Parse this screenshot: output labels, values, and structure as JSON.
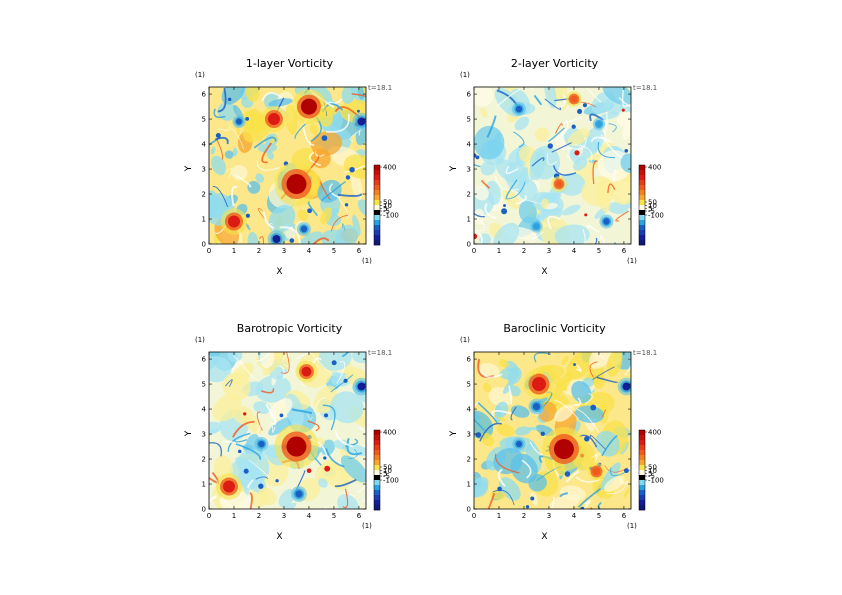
{
  "chart_data": [
    {
      "type": "heatmap",
      "title": "1-layer Vorticity",
      "xlabel": "X",
      "ylabel": "Y",
      "x_unit": "(1)",
      "y_unit": "(1)",
      "time_label": "t=18.1",
      "xlim": [
        0,
        6.283
      ],
      "ylim": [
        0,
        6.283
      ],
      "xticks": [
        0,
        1,
        2,
        3,
        4,
        5,
        6
      ],
      "yticks": [
        0,
        1,
        2,
        3,
        4,
        5,
        6
      ],
      "colorbar": {
        "ticks": [
          400,
          50,
          10,
          5,
          -5,
          -100
        ]
      },
      "grid": false,
      "style": "strong",
      "features": [
        {
          "x": 3.5,
          "y": 2.4,
          "value": 400
        },
        {
          "x": 4.0,
          "y": 5.5,
          "value": 300
        },
        {
          "x": 6.1,
          "y": 4.9,
          "value": -100
        },
        {
          "x": 2.6,
          "y": 5.0,
          "value": 200
        },
        {
          "x": 1.0,
          "y": 0.9,
          "value": 200
        },
        {
          "x": 2.7,
          "y": 0.2,
          "value": -100
        },
        {
          "x": 3.8,
          "y": 0.6,
          "value": -60
        },
        {
          "x": 1.2,
          "y": 4.9,
          "value": -50
        }
      ]
    },
    {
      "type": "heatmap",
      "title": "2-layer Vorticity",
      "xlabel": "X",
      "ylabel": "Y",
      "x_unit": "(1)",
      "y_unit": "(1)",
      "time_label": "t=18.1",
      "xlim": [
        0,
        6.283
      ],
      "ylim": [
        0,
        6.283
      ],
      "xticks": [
        0,
        1,
        2,
        3,
        4,
        5,
        6
      ],
      "yticks": [
        0,
        1,
        2,
        3,
        4,
        5,
        6
      ],
      "colorbar": {
        "ticks": [
          400,
          50,
          10,
          5,
          -5,
          -100
        ]
      },
      "grid": false,
      "style": "weak",
      "features": [
        {
          "x": 3.4,
          "y": 2.4,
          "value": 80
        },
        {
          "x": 1.8,
          "y": 5.4,
          "value": -60
        },
        {
          "x": 5.0,
          "y": 4.8,
          "value": -40
        },
        {
          "x": 2.5,
          "y": 0.7,
          "value": -40
        },
        {
          "x": 5.3,
          "y": 0.9,
          "value": -60
        },
        {
          "x": 4.0,
          "y": 5.8,
          "value": 80
        }
      ]
    },
    {
      "type": "heatmap",
      "title": "Barotropic Vorticity",
      "xlabel": "X",
      "ylabel": "Y",
      "x_unit": "(1)",
      "y_unit": "(1)",
      "time_label": "t=18.1",
      "xlim": [
        0,
        6.283
      ],
      "ylim": [
        0,
        6.283
      ],
      "xticks": [
        0,
        1,
        2,
        3,
        4,
        5,
        6
      ],
      "yticks": [
        0,
        1,
        2,
        3,
        4,
        5,
        6
      ],
      "colorbar": {
        "ticks": [
          400,
          50,
          10,
          5,
          -5,
          -100
        ]
      },
      "grid": false,
      "style": "weak",
      "features": [
        {
          "x": 3.5,
          "y": 2.5,
          "value": 400
        },
        {
          "x": 6.1,
          "y": 4.9,
          "value": -100
        },
        {
          "x": 0.8,
          "y": 0.9,
          "value": 200
        },
        {
          "x": 3.9,
          "y": 5.5,
          "value": 150
        },
        {
          "x": 2.1,
          "y": 2.6,
          "value": -60
        },
        {
          "x": 3.6,
          "y": 0.6,
          "value": -80
        }
      ]
    },
    {
      "type": "heatmap",
      "title": "Baroclinic Vorticity",
      "xlabel": "X",
      "ylabel": "Y",
      "x_unit": "(1)",
      "y_unit": "(1)",
      "time_label": "t=18.1",
      "xlim": [
        0,
        6.283
      ],
      "ylim": [
        0,
        6.283
      ],
      "xticks": [
        0,
        1,
        2,
        3,
        4,
        5,
        6
      ],
      "yticks": [
        0,
        1,
        2,
        3,
        4,
        5,
        6
      ],
      "colorbar": {
        "ticks": [
          400,
          50,
          10,
          5,
          -5,
          -100
        ]
      },
      "grid": false,
      "style": "strong",
      "features": [
        {
          "x": 3.6,
          "y": 2.4,
          "value": 400
        },
        {
          "x": 2.6,
          "y": 5.0,
          "value": 250
        },
        {
          "x": 6.1,
          "y": 4.9,
          "value": -100
        },
        {
          "x": 2.5,
          "y": 4.1,
          "value": -80
        },
        {
          "x": 1.8,
          "y": 2.6,
          "value": -50
        },
        {
          "x": 4.9,
          "y": 1.5,
          "value": 100
        }
      ]
    }
  ]
}
